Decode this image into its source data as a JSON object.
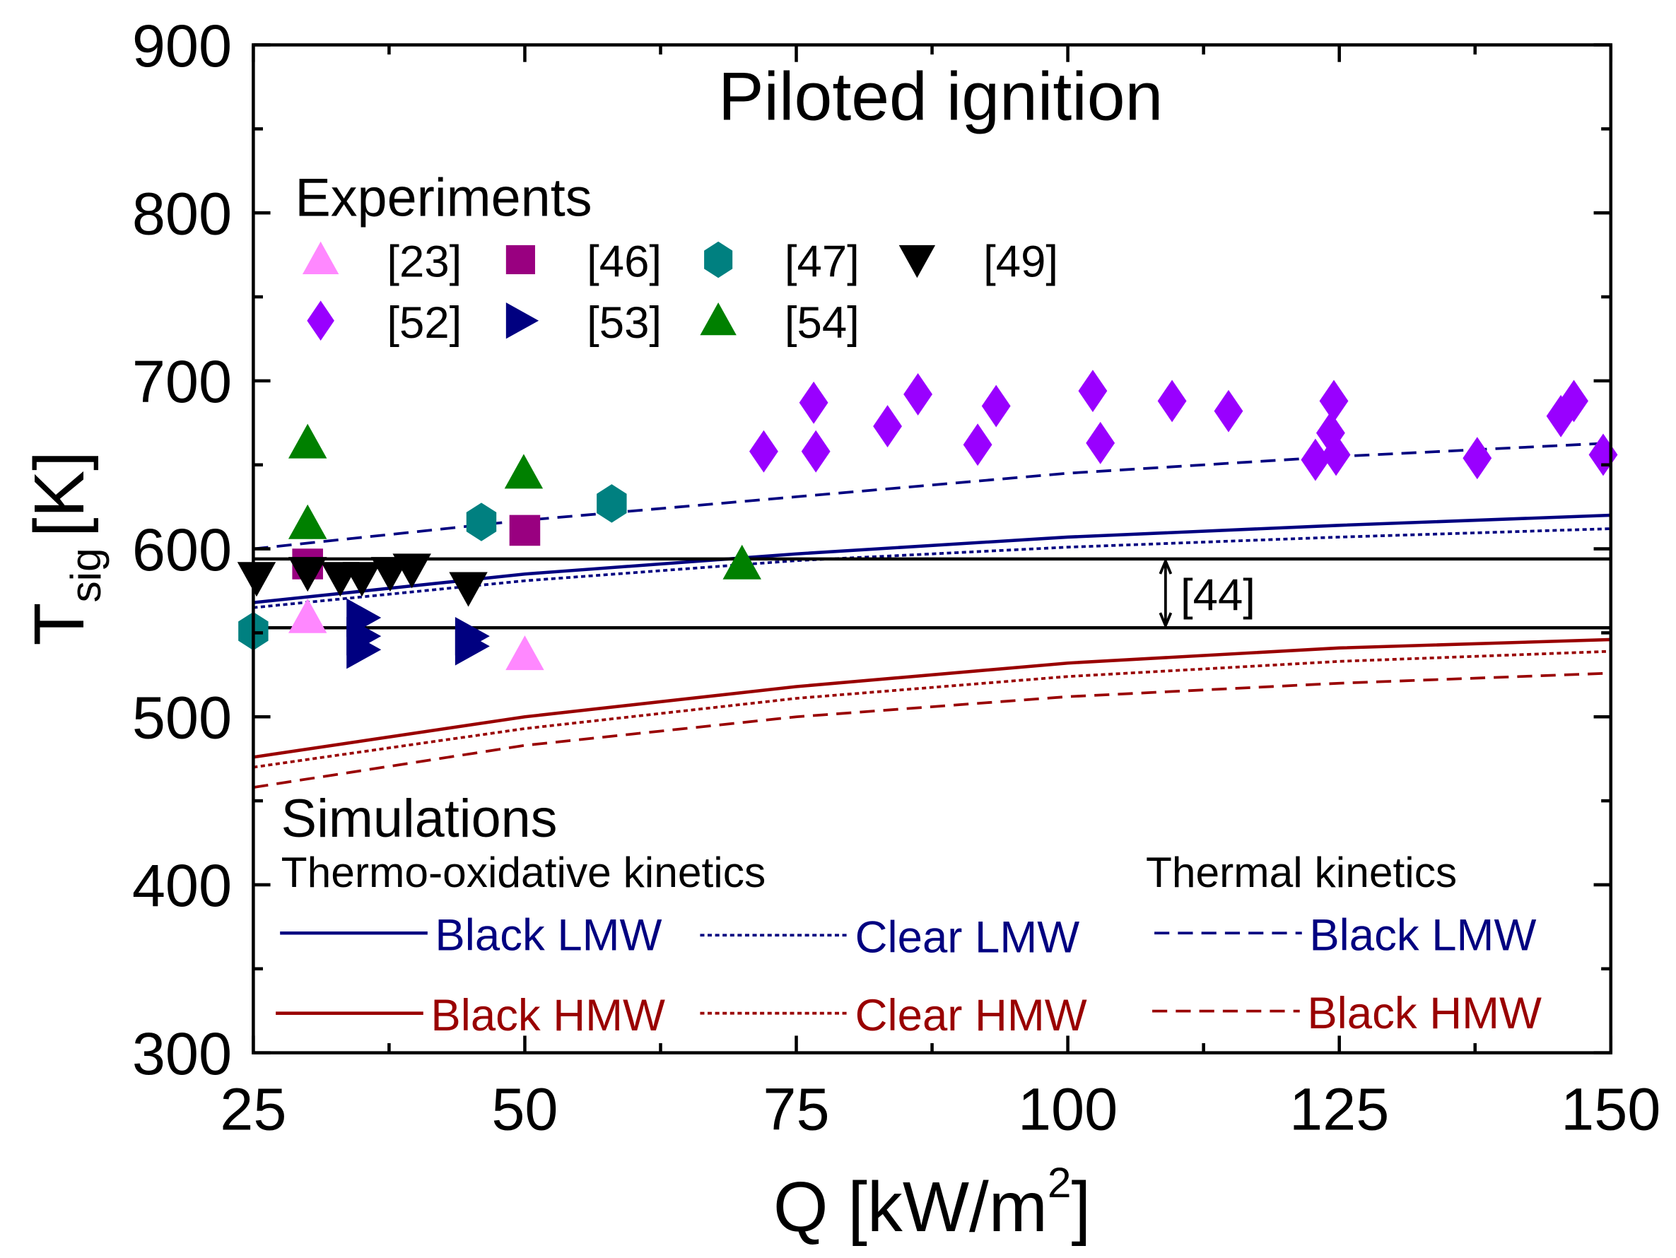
{
  "chart_data": {
    "type": "scatter",
    "title": "Piloted ignition",
    "xlabel": "Q [kW/m²]",
    "ylabel": "T_sig [K]",
    "xlabel_main": "Q [kW/m",
    "xlabel_sup": "2",
    "xlabel_end": "]",
    "ylabel_main": "T",
    "ylabel_sub": "sig",
    "ylabel_end": "[K]",
    "xlim": [
      25,
      150
    ],
    "ylim": [
      300,
      900
    ],
    "xticks": [
      25,
      50,
      75,
      100,
      125,
      150
    ],
    "yticks": [
      300,
      400,
      500,
      600,
      700,
      800,
      900
    ],
    "experiments_title": "Experiments",
    "simulations_title": "Simulations",
    "thermo_title": "Thermo-oxidative kinetics",
    "thermal_title": "Thermal kinetics",
    "band": {
      "label": "[44]",
      "low": 553,
      "high": 594,
      "arrow_x": 109
    },
    "experiments": [
      {
        "name": "[23]",
        "marker": "triangle-up",
        "color": "#ff88ff",
        "points": [
          [
            30,
            559
          ],
          [
            50,
            537
          ]
        ]
      },
      {
        "name": "[46]",
        "marker": "square",
        "color": "#990080",
        "points": [
          [
            30,
            591
          ],
          [
            50,
            611
          ]
        ]
      },
      {
        "name": "[47]",
        "marker": "hexagon",
        "color": "#008080",
        "points": [
          [
            25,
            551
          ],
          [
            46,
            616
          ],
          [
            58,
            627
          ]
        ]
      },
      {
        "name": "[49]",
        "marker": "triangle-down",
        "color": "#000000",
        "points": [
          [
            25.3,
            583
          ],
          [
            30,
            586
          ],
          [
            33,
            583
          ],
          [
            35,
            583
          ],
          [
            37.6,
            586
          ],
          [
            39.6,
            588
          ],
          [
            44.8,
            577
          ]
        ]
      },
      {
        "name": "[52]",
        "marker": "diamond",
        "color": "#9900ff",
        "points": [
          [
            72,
            658
          ],
          [
            76.6,
            687
          ],
          [
            76.8,
            658
          ],
          [
            83.4,
            673
          ],
          [
            86.2,
            692
          ],
          [
            91.7,
            662
          ],
          [
            93.4,
            685
          ],
          [
            102.3,
            694
          ],
          [
            103,
            663
          ],
          [
            109.6,
            688
          ],
          [
            114.8,
            682
          ],
          [
            122.8,
            653
          ],
          [
            124.5,
            688
          ],
          [
            124.2,
            669
          ],
          [
            124.7,
            656
          ],
          [
            137.7,
            654
          ],
          [
            145.4,
            679
          ],
          [
            146.6,
            688
          ],
          [
            149.3,
            656
          ]
        ]
      },
      {
        "name": "[53]",
        "marker": "triangle-right",
        "color": "#000080",
        "points": [
          [
            35,
            559
          ],
          [
            35,
            548
          ],
          [
            35,
            540
          ],
          [
            45,
            548
          ],
          [
            45,
            542
          ]
        ]
      },
      {
        "name": "[54]",
        "marker": "triangle-up",
        "color": "#008000",
        "points": [
          [
            30,
            663
          ],
          [
            30,
            615
          ],
          [
            49.9,
            645
          ],
          [
            70,
            591
          ]
        ]
      }
    ],
    "x": [
      25,
      50,
      75,
      100,
      125,
      150
    ],
    "series": [
      {
        "name": "Black LMW",
        "group": "thermo",
        "style": "solid",
        "color": "#000080",
        "values": [
          568,
          585,
          597,
          607,
          614,
          620
        ]
      },
      {
        "name": "Clear LMW",
        "group": "thermo",
        "style": "dotted",
        "color": "#000080",
        "values": [
          565,
          581,
          593,
          601,
          607,
          612
        ]
      },
      {
        "name": "Black LMW",
        "group": "thermal",
        "style": "dashed",
        "color": "#000080",
        "values": [
          600,
          617,
          631,
          645,
          655,
          663
        ]
      },
      {
        "name": "Black HMW",
        "group": "thermo",
        "style": "solid",
        "color": "#990000",
        "values": [
          476,
          500,
          518,
          532,
          541,
          546
        ]
      },
      {
        "name": "Clear HMW",
        "group": "thermo",
        "style": "dotted",
        "color": "#990000",
        "values": [
          470,
          493,
          511,
          524,
          533,
          539
        ]
      },
      {
        "name": "Black HMW",
        "group": "thermal",
        "style": "dashed",
        "color": "#990000",
        "values": [
          458,
          483,
          500,
          512,
          520,
          526
        ]
      }
    ]
  }
}
